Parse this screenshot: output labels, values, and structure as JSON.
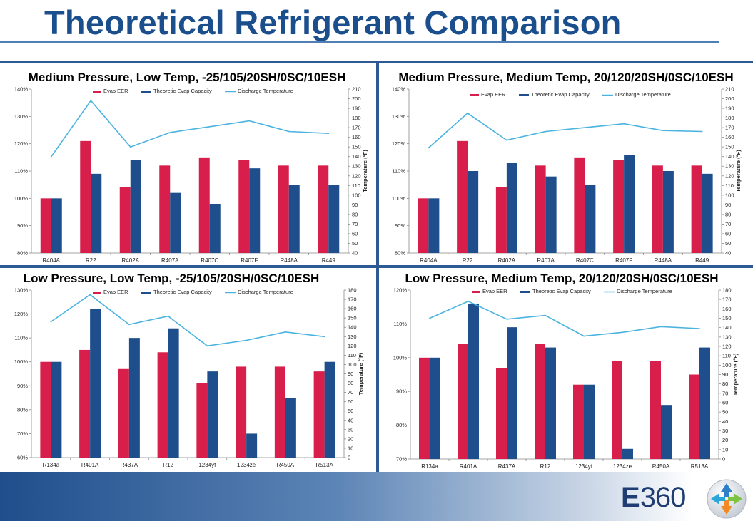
{
  "page": {
    "title": "Theoretical Refrigerant Comparison",
    "logo_text_bold": "E",
    "logo_text_rest": "360",
    "colors": {
      "title": "#1a4e8c",
      "band": "#2d5a94",
      "eer": "#d81e4a",
      "capacity": "#1f4e8c",
      "discharge": "#4bb3df"
    }
  },
  "chart_data": [
    {
      "type": "bar",
      "title": "Medium Pressure, Low Temp, -25/105/20SH/0SC/10ESH",
      "categories": [
        "R404A",
        "R22",
        "R402A",
        "R407A",
        "R407C",
        "R407F",
        "R448A",
        "R449"
      ],
      "series": [
        {
          "name": "Evap EER",
          "values": [
            100,
            121,
            104,
            112,
            115,
            114,
            112,
            112
          ]
        },
        {
          "name": "Theoretic Evap Capacity",
          "values": [
            100,
            109,
            114,
            102,
            98,
            111,
            105,
            105
          ]
        },
        {
          "name": "Discharge Temperature",
          "axis": "right",
          "kind": "line",
          "values": [
            140,
            198,
            150,
            165,
            171,
            177,
            166,
            164
          ]
        }
      ],
      "ylim": [
        80,
        140
      ],
      "y_ticks": [
        80,
        90,
        100,
        110,
        120,
        130,
        140
      ],
      "y2lim": [
        40,
        210
      ],
      "y2_ticks": [
        40,
        50,
        60,
        70,
        80,
        90,
        100,
        110,
        120,
        130,
        140,
        150,
        160,
        170,
        180,
        190,
        200,
        210
      ],
      "y_format": "percent",
      "y2label": "Temperature (°F)",
      "legend": "top-center"
    },
    {
      "type": "bar",
      "title": "Medium Pressure, Medium Temp, 20/120/20SH/0SC/10ESH",
      "categories": [
        "R404A",
        "R22",
        "R402A",
        "R407A",
        "R407C",
        "R407F",
        "R448A",
        "R449"
      ],
      "series": [
        {
          "name": "Evap EER",
          "values": [
            100,
            121,
            104,
            112,
            115,
            114,
            112,
            112
          ]
        },
        {
          "name": "Theoretic Evap Capacity",
          "values": [
            100,
            110,
            113,
            108,
            105,
            116,
            110,
            109
          ]
        },
        {
          "name": "Discharge Temperature",
          "axis": "right",
          "kind": "line",
          "values": [
            149,
            185,
            157,
            166,
            170,
            174,
            167,
            166
          ]
        }
      ],
      "ylim": [
        80,
        140
      ],
      "y_ticks": [
        80,
        90,
        100,
        110,
        120,
        130,
        140
      ],
      "y2lim": [
        40,
        210
      ],
      "y2_ticks": [
        40,
        50,
        60,
        70,
        80,
        90,
        100,
        110,
        120,
        130,
        140,
        150,
        160,
        170,
        180,
        190,
        200,
        210
      ],
      "y_format": "percent",
      "y2label": "Temperature (°F)",
      "legend": "top-center"
    },
    {
      "type": "bar",
      "title": "Low Pressure, Low Temp, -25/105/20SH/0SC/10ESH",
      "categories": [
        "R134a",
        "R401A",
        "R437A",
        "R12",
        "1234yf",
        "1234ze",
        "R450A",
        "R513A"
      ],
      "series": [
        {
          "name": "Evap EER",
          "values": [
            100,
            105,
            97,
            104,
            91,
            98,
            98,
            96
          ]
        },
        {
          "name": "Theoretic Evap Capacity",
          "values": [
            100,
            122,
            110,
            114,
            96,
            70,
            85,
            100
          ]
        },
        {
          "name": "Discharge Temperature",
          "axis": "right",
          "kind": "line",
          "values": [
            146,
            175,
            143,
            152,
            120,
            126,
            135,
            130
          ]
        }
      ],
      "ylim": [
        60,
        130
      ],
      "y_ticks": [
        60,
        70,
        80,
        90,
        100,
        110,
        120,
        130
      ],
      "y2lim": [
        0,
        180
      ],
      "y2_ticks": [
        0,
        10,
        20,
        30,
        40,
        50,
        60,
        70,
        80,
        90,
        100,
        110,
        120,
        130,
        140,
        150,
        160,
        170,
        180
      ],
      "y_format": "percent",
      "y2label": "Temperature (°F)",
      "legend": "top-center"
    },
    {
      "type": "bar",
      "title": "Low Pressure, Medium Temp, 20/120/20SH/0SC/10ESH",
      "categories": [
        "R134a",
        "R401A",
        "R437A",
        "R12",
        "1234yf",
        "1234ze",
        "R450A",
        "R513A"
      ],
      "series": [
        {
          "name": "Evap EER",
          "values": [
            100,
            104,
            97,
            104,
            92,
            99,
            99,
            95
          ]
        },
        {
          "name": "Theoretic Evap Capacity",
          "values": [
            100,
            116,
            109,
            103,
            92,
            73,
            86,
            103
          ]
        },
        {
          "name": "Discharge Temperature",
          "axis": "right",
          "kind": "line",
          "values": [
            150,
            168,
            149,
            153,
            131,
            135,
            141,
            139
          ]
        }
      ],
      "ylim": [
        70,
        120
      ],
      "y_ticks": [
        70,
        80,
        90,
        100,
        110,
        120
      ],
      "y2lim": [
        0,
        180
      ],
      "y2_ticks": [
        0,
        10,
        20,
        30,
        40,
        50,
        60,
        70,
        80,
        90,
        100,
        110,
        120,
        130,
        140,
        150,
        160,
        170,
        180
      ],
      "y_format": "percent",
      "y2label": "Temperature (°F)",
      "legend": "top-center"
    }
  ]
}
